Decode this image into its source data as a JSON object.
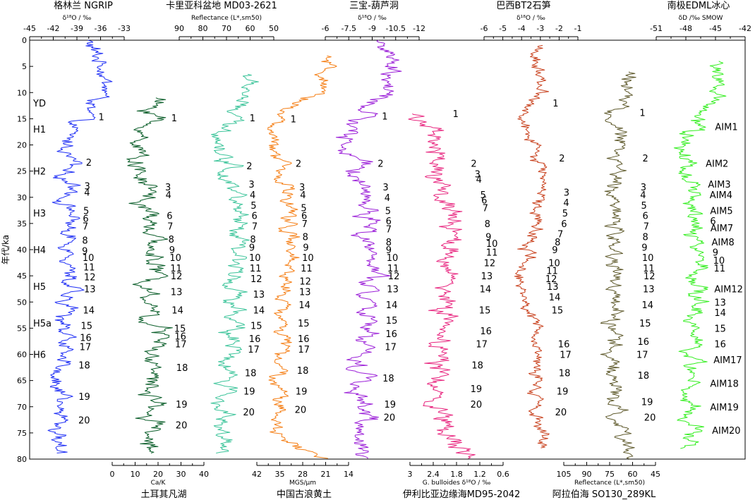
{
  "chart_data": {
    "type": "line",
    "y_axis": {
      "label": "年代/ka",
      "range": [
        0,
        80
      ],
      "ticks": [
        0,
        5,
        10,
        15,
        20,
        25,
        30,
        35,
        40,
        45,
        50,
        55,
        60,
        65,
        70,
        75,
        80
      ],
      "reversed": true
    },
    "top_titles": [
      "格林兰 NGRIP",
      "卡里亚科盆地 MD03-2621",
      "三宝-葫芦洞",
      "巴西BT2石笋",
      "南极EDML冰心"
    ],
    "bottom_titles": [
      "土耳其凡湖",
      "中国古浪黄土",
      "伊利比亚边缘海MD95-2042",
      "阿拉伯海 SO130_289KL"
    ],
    "top_axes": [
      {
        "id": "ngrip",
        "unit": "δ¹⁸O / ‰",
        "ticks": [
          "-45",
          "-42",
          "-39",
          "-36",
          "-33"
        ]
      },
      {
        "id": "cariaco",
        "unit": "Reflectance (L*,sm50)",
        "ticks": [
          "90",
          "80",
          "70",
          "60",
          "50"
        ]
      },
      {
        "id": "hulu",
        "unit": "δ¹⁸O / ‰",
        "ticks": [
          "-6",
          "-7.5",
          "-9",
          "-10.5",
          "-12"
        ]
      },
      {
        "id": "bt2",
        "unit": "δ¹⁸O / ‰",
        "ticks": [
          "-6",
          "-5",
          "-4",
          "-3",
          "-2",
          "-1"
        ]
      },
      {
        "id": "edml",
        "unit": "δD /‰ SMOW",
        "ticks": [
          "-51",
          "-48",
          "-45",
          "-42"
        ]
      }
    ],
    "bottom_axes": [
      {
        "id": "van",
        "unit": "Ca/K",
        "ticks": [
          "0",
          "10",
          "20",
          "30",
          "40"
        ]
      },
      {
        "id": "gulang",
        "unit": "MGS/μm",
        "ticks": [
          "42",
          "35",
          "28",
          "21",
          "14"
        ]
      },
      {
        "id": "md95",
        "unit": "G. bulloides δ¹⁸O / ‰",
        "ticks": [
          "3",
          "2.4",
          "1.8",
          "1.2",
          "0.6"
        ]
      },
      {
        "id": "arabian",
        "unit": "Reflectance (L*,sm50)",
        "ticks": [
          "105",
          "90",
          "75",
          "60",
          "45"
        ]
      }
    ],
    "heinrich_events": [
      {
        "label": "YD",
        "age": 12
      },
      {
        "label": "H1",
        "age": 17
      },
      {
        "label": "H2",
        "age": 25
      },
      {
        "label": "H3",
        "age": 33
      },
      {
        "label": "H4",
        "age": 40
      },
      {
        "label": "H5",
        "age": 47
      },
      {
        "label": "H5a",
        "age": 54
      },
      {
        "label": "H6",
        "age": 60
      }
    ],
    "series": [
      {
        "id": "ngrip",
        "color": "#1f2ff5",
        "base": [
          -36,
          -36,
          -37,
          -39.5,
          -41,
          -42,
          -42,
          -42.5,
          -42.5,
          -42,
          -42,
          -43,
          -43.5,
          -44,
          -43.5,
          -44,
          -43
        ],
        "events": [
          {
            "n": "1",
            "age": 14.6
          },
          {
            "n": "2",
            "age": 23.3
          },
          {
            "n": "3",
            "age": 27.8
          },
          {
            "n": "4",
            "age": 29.0
          },
          {
            "n": "5",
            "age": 32.5
          },
          {
            "n": "6",
            "age": 34.0
          },
          {
            "n": "7",
            "age": 35.5
          },
          {
            "n": "8",
            "age": 38.2
          },
          {
            "n": "9",
            "age": 40.2
          },
          {
            "n": "10",
            "age": 41.5
          },
          {
            "n": "11",
            "age": 43.3
          },
          {
            "n": "12",
            "age": 45.2
          },
          {
            "n": "13",
            "age": 47.5
          },
          {
            "n": "14",
            "age": 51.5
          },
          {
            "n": "15",
            "age": 54.5
          },
          {
            "n": "16",
            "age": 56.8
          },
          {
            "n": "17",
            "age": 58.5
          },
          {
            "n": "18",
            "age": 62.0
          },
          {
            "n": "19",
            "age": 68.0
          },
          {
            "n": "20",
            "age": 72.5
          }
        ]
      },
      {
        "id": "van",
        "color": "#0b5e2a",
        "base": [
          null,
          null,
          24,
          16,
          14,
          13,
          13,
          14,
          14,
          14,
          16,
          18,
          18,
          18,
          17,
          18,
          18
        ],
        "events": [
          {
            "n": "1",
            "age": 14.8
          },
          {
            "n": "3",
            "age": 28.0
          },
          {
            "n": "4",
            "age": 29.5
          },
          {
            "n": "6",
            "age": 33.5
          },
          {
            "n": "7",
            "age": 35.5
          },
          {
            "n": "8",
            "age": 38.0
          },
          {
            "n": "9",
            "age": 40.0
          },
          {
            "n": "10",
            "age": 41.5
          },
          {
            "n": "11",
            "age": 43.5
          },
          {
            "n": "12",
            "age": 45.0
          },
          {
            "n": "13",
            "age": 48.0
          },
          {
            "n": "14",
            "age": 51.5
          },
          {
            "n": "15",
            "age": 55.0
          },
          {
            "n": "16",
            "age": 56.5
          },
          {
            "n": "17",
            "age": 58.0
          },
          {
            "n": "18",
            "age": 62.5
          },
          {
            "n": "19",
            "age": 69.5
          },
          {
            "n": "20",
            "age": 73.5
          }
        ]
      },
      {
        "id": "cariaco",
        "color": "#3cc49a",
        "base": [
          null,
          58,
          58,
          72,
          75,
          73,
          71,
          71,
          73,
          71,
          70,
          72,
          73,
          75,
          75,
          75,
          76
        ],
        "events": [
          {
            "n": "1",
            "age": 14.8
          },
          {
            "n": "2",
            "age": 24.0
          },
          {
            "n": "3",
            "age": 27.5
          },
          {
            "n": "4",
            "age": 29.5
          },
          {
            "n": "5",
            "age": 31.5
          },
          {
            "n": "6",
            "age": 33.5
          },
          {
            "n": "7",
            "age": 35.5
          },
          {
            "n": "8",
            "age": 38.0
          },
          {
            "n": "9",
            "age": 39.5
          },
          {
            "n": "10",
            "age": 41.5
          },
          {
            "n": "11",
            "age": 43.5
          },
          {
            "n": "12",
            "age": 45.5
          },
          {
            "n": "13",
            "age": 48.5
          },
          {
            "n": "14",
            "age": 51.5
          },
          {
            "n": "15",
            "age": 54.5
          },
          {
            "n": "16",
            "age": 57.0
          },
          {
            "n": "17",
            "age": 59.0
          },
          {
            "n": "18",
            "age": 63.5
          },
          {
            "n": "19",
            "age": 67.0
          },
          {
            "n": "20",
            "age": 71.0
          }
        ]
      },
      {
        "id": "gulang",
        "color": "#f57e14",
        "base": [
          null,
          18,
          25,
          34,
          35,
          34,
          33,
          33,
          33,
          34,
          34,
          34,
          34,
          35,
          35,
          35,
          22
        ],
        "events": [
          {
            "n": "1",
            "age": 15.0
          },
          {
            "n": "2",
            "age": 23.5
          },
          {
            "n": "3",
            "age": 28.0
          },
          {
            "n": "4",
            "age": 29.5
          },
          {
            "n": "5",
            "age": 32.0
          },
          {
            "n": "6",
            "age": 33.5
          },
          {
            "n": "7",
            "age": 35.0
          },
          {
            "n": "8",
            "age": 37.5
          },
          {
            "n": "9",
            "age": 39.5
          },
          {
            "n": "10",
            "age": 41.5
          },
          {
            "n": "11",
            "age": 43.5
          },
          {
            "n": "12",
            "age": 46.0
          },
          {
            "n": "13",
            "age": 48.0
          },
          {
            "n": "14",
            "age": 50.5
          },
          {
            "n": "15",
            "age": 54.0
          },
          {
            "n": "16",
            "age": 57.0
          },
          {
            "n": "17",
            "age": 59.0
          },
          {
            "n": "18",
            "age": 63.0
          },
          {
            "n": "19",
            "age": 67.0
          },
          {
            "n": "20",
            "age": 70.5
          }
        ]
      },
      {
        "id": "hulu",
        "color": "#9b1fd8",
        "base": [
          -10,
          -10,
          -10,
          -9,
          -7.5,
          -8,
          -8.5,
          -8.5,
          -8,
          -8,
          -8,
          -8,
          -8,
          -8,
          -8,
          -8,
          -8
        ],
        "events": [
          {
            "n": "1",
            "age": 14.5
          },
          {
            "n": "2",
            "age": 23.5
          },
          {
            "n": "3",
            "age": 28.0
          },
          {
            "n": "4",
            "age": 30.0
          },
          {
            "n": "5",
            "age": 32.5
          },
          {
            "n": "6",
            "age": 34.5
          },
          {
            "n": "7",
            "age": 36.0
          },
          {
            "n": "8",
            "age": 38.5
          },
          {
            "n": "9",
            "age": 40.0
          },
          {
            "n": "10",
            "age": 41.5
          },
          {
            "n": "11",
            "age": 43.5
          },
          {
            "n": "12",
            "age": 45.0
          },
          {
            "n": "13",
            "age": 47.5
          },
          {
            "n": "14",
            "age": 50.5
          },
          {
            "n": "15",
            "age": 53.5
          },
          {
            "n": "16",
            "age": 56.0
          },
          {
            "n": "17",
            "age": 58.5
          },
          {
            "n": "18",
            "age": 64.5
          },
          {
            "n": "19",
            "age": 69.5
          },
          {
            "n": "20",
            "age": 72.0
          }
        ]
      },
      {
        "id": "md95",
        "color": "#e8267f",
        "base": [
          null,
          null,
          null,
          2.6,
          2.5,
          2.3,
          2.1,
          2.0,
          2.0,
          2.1,
          2.2,
          2.2,
          2.3,
          2.3,
          2.3,
          2.2,
          1.6
        ],
        "events": [
          {
            "n": "1",
            "age": 14.0
          },
          {
            "n": "2",
            "age": 23.5
          },
          {
            "n": "3",
            "age": 25.5
          },
          {
            "n": "4",
            "age": 26.5
          },
          {
            "n": "5",
            "age": 29.5
          },
          {
            "n": "6",
            "age": 30.5
          },
          {
            "n": "7",
            "age": 32.0
          },
          {
            "n": "8",
            "age": 35.0
          },
          {
            "n": "9",
            "age": 37.5
          },
          {
            "n": "10",
            "age": 38.8
          },
          {
            "n": "11",
            "age": 40.5
          },
          {
            "n": "12",
            "age": 42.5
          },
          {
            "n": "13",
            "age": 45.0
          },
          {
            "n": "14",
            "age": 47.5
          },
          {
            "n": "15",
            "age": 51.5
          },
          {
            "n": "16",
            "age": 55.5
          },
          {
            "n": "17",
            "age": 58.0
          },
          {
            "n": "18",
            "age": 62.0
          },
          {
            "n": "19",
            "age": 66.5
          },
          {
            "n": "20",
            "age": 69.5
          }
        ]
      },
      {
        "id": "bt2",
        "color": "#c8401c",
        "base": [
          null,
          -2.8,
          -2.7,
          -4.5,
          -3.8,
          -3.6,
          -3.6,
          -3.7,
          -3.9,
          -4.2,
          -4.0,
          -3.8,
          -3.6,
          -3.7,
          -3.8,
          -3.5,
          -3.3
        ],
        "events": [
          {
            "n": "1",
            "age": 12.0
          },
          {
            "n": "2",
            "age": 22.5
          },
          {
            "n": "3",
            "age": 29.0
          },
          {
            "n": "4",
            "age": 31.0
          },
          {
            "n": "5",
            "age": 33.0
          },
          {
            "n": "6",
            "age": 35.0
          },
          {
            "n": "7",
            "age": 37.0
          },
          {
            "n": "8",
            "age": 38.5
          },
          {
            "n": "9",
            "age": 40.0
          },
          {
            "n": "10",
            "age": 42.5
          },
          {
            "n": "11",
            "age": 44.0
          },
          {
            "n": "12",
            "age": 45.5
          },
          {
            "n": "13",
            "age": 47.0
          },
          {
            "n": "14",
            "age": 49.0
          },
          {
            "n": "15",
            "age": 51.5
          },
          {
            "n": "16",
            "age": 58.0
          },
          {
            "n": "17",
            "age": 60.0
          },
          {
            "n": "18",
            "age": 63.5
          },
          {
            "n": "19",
            "age": 67.0
          },
          {
            "n": "20",
            "age": 71.0
          }
        ]
      },
      {
        "id": "arabian",
        "color": "#5f5a2c",
        "base": [
          null,
          63,
          68,
          78,
          70,
          70,
          71,
          70,
          71,
          70,
          70,
          72,
          73,
          72,
          70,
          68,
          65
        ],
        "events": [
          {
            "n": "1",
            "age": 13.8
          },
          {
            "n": "2",
            "age": 22.5
          },
          {
            "n": "3",
            "age": 28.0
          },
          {
            "n": "4",
            "age": 29.5
          },
          {
            "n": "5",
            "age": 31.5
          },
          {
            "n": "6",
            "age": 33.5
          },
          {
            "n": "7",
            "age": 35.5
          },
          {
            "n": "8",
            "age": 37.5
          },
          {
            "n": "9",
            "age": 39.5
          },
          {
            "n": "10",
            "age": 41.5
          },
          {
            "n": "11",
            "age": 43.5
          },
          {
            "n": "12",
            "age": 45.0
          },
          {
            "n": "13",
            "age": 47.5
          },
          {
            "n": "14",
            "age": 50.5
          },
          {
            "n": "15",
            "age": 54.0
          },
          {
            "n": "16",
            "age": 57.5
          },
          {
            "n": "17",
            "age": 60.0
          },
          {
            "n": "18",
            "age": 64.0
          },
          {
            "n": "19",
            "age": 69.0
          },
          {
            "n": "20",
            "age": 72.0
          }
        ]
      },
      {
        "id": "edml",
        "color": "#34ee20",
        "base": [
          null,
          -45,
          -45,
          -46.5,
          -48,
          -48,
          -47.5,
          -47.5,
          -47,
          -47,
          -47,
          -47,
          -47,
          -47.5,
          -47.5,
          -47,
          -47
        ],
        "events": [
          {
            "n": "AIM1",
            "age": 16.5
          },
          {
            "n": "AIM2",
            "age": 23.5
          },
          {
            "n": "AIM3",
            "age": 27.5
          },
          {
            "n": "AIM4",
            "age": 29.5
          },
          {
            "n": "AIM5",
            "age": 32.5
          },
          {
            "n": "6",
            "age": 34.5
          },
          {
            "n": "AIM7",
            "age": 35.8
          },
          {
            "n": "AIM8",
            "age": 38.5
          },
          {
            "n": "9",
            "age": 40.5
          },
          {
            "n": "10",
            "age": 42.0
          },
          {
            "n": "11",
            "age": 43.5
          },
          {
            "n": "AIM12",
            "age": 47.5
          },
          {
            "n": "13",
            "age": 50.0
          },
          {
            "n": "14",
            "age": 52.0
          },
          {
            "n": "15",
            "age": 55.0
          },
          {
            "n": "16",
            "age": 58.0
          },
          {
            "n": "AIM17",
            "age": 61.0
          },
          {
            "n": "AIM18",
            "age": 65.5
          },
          {
            "n": "AIM19",
            "age": 70.0
          },
          {
            "n": "AIM20",
            "age": 74.5
          }
        ]
      }
    ]
  }
}
